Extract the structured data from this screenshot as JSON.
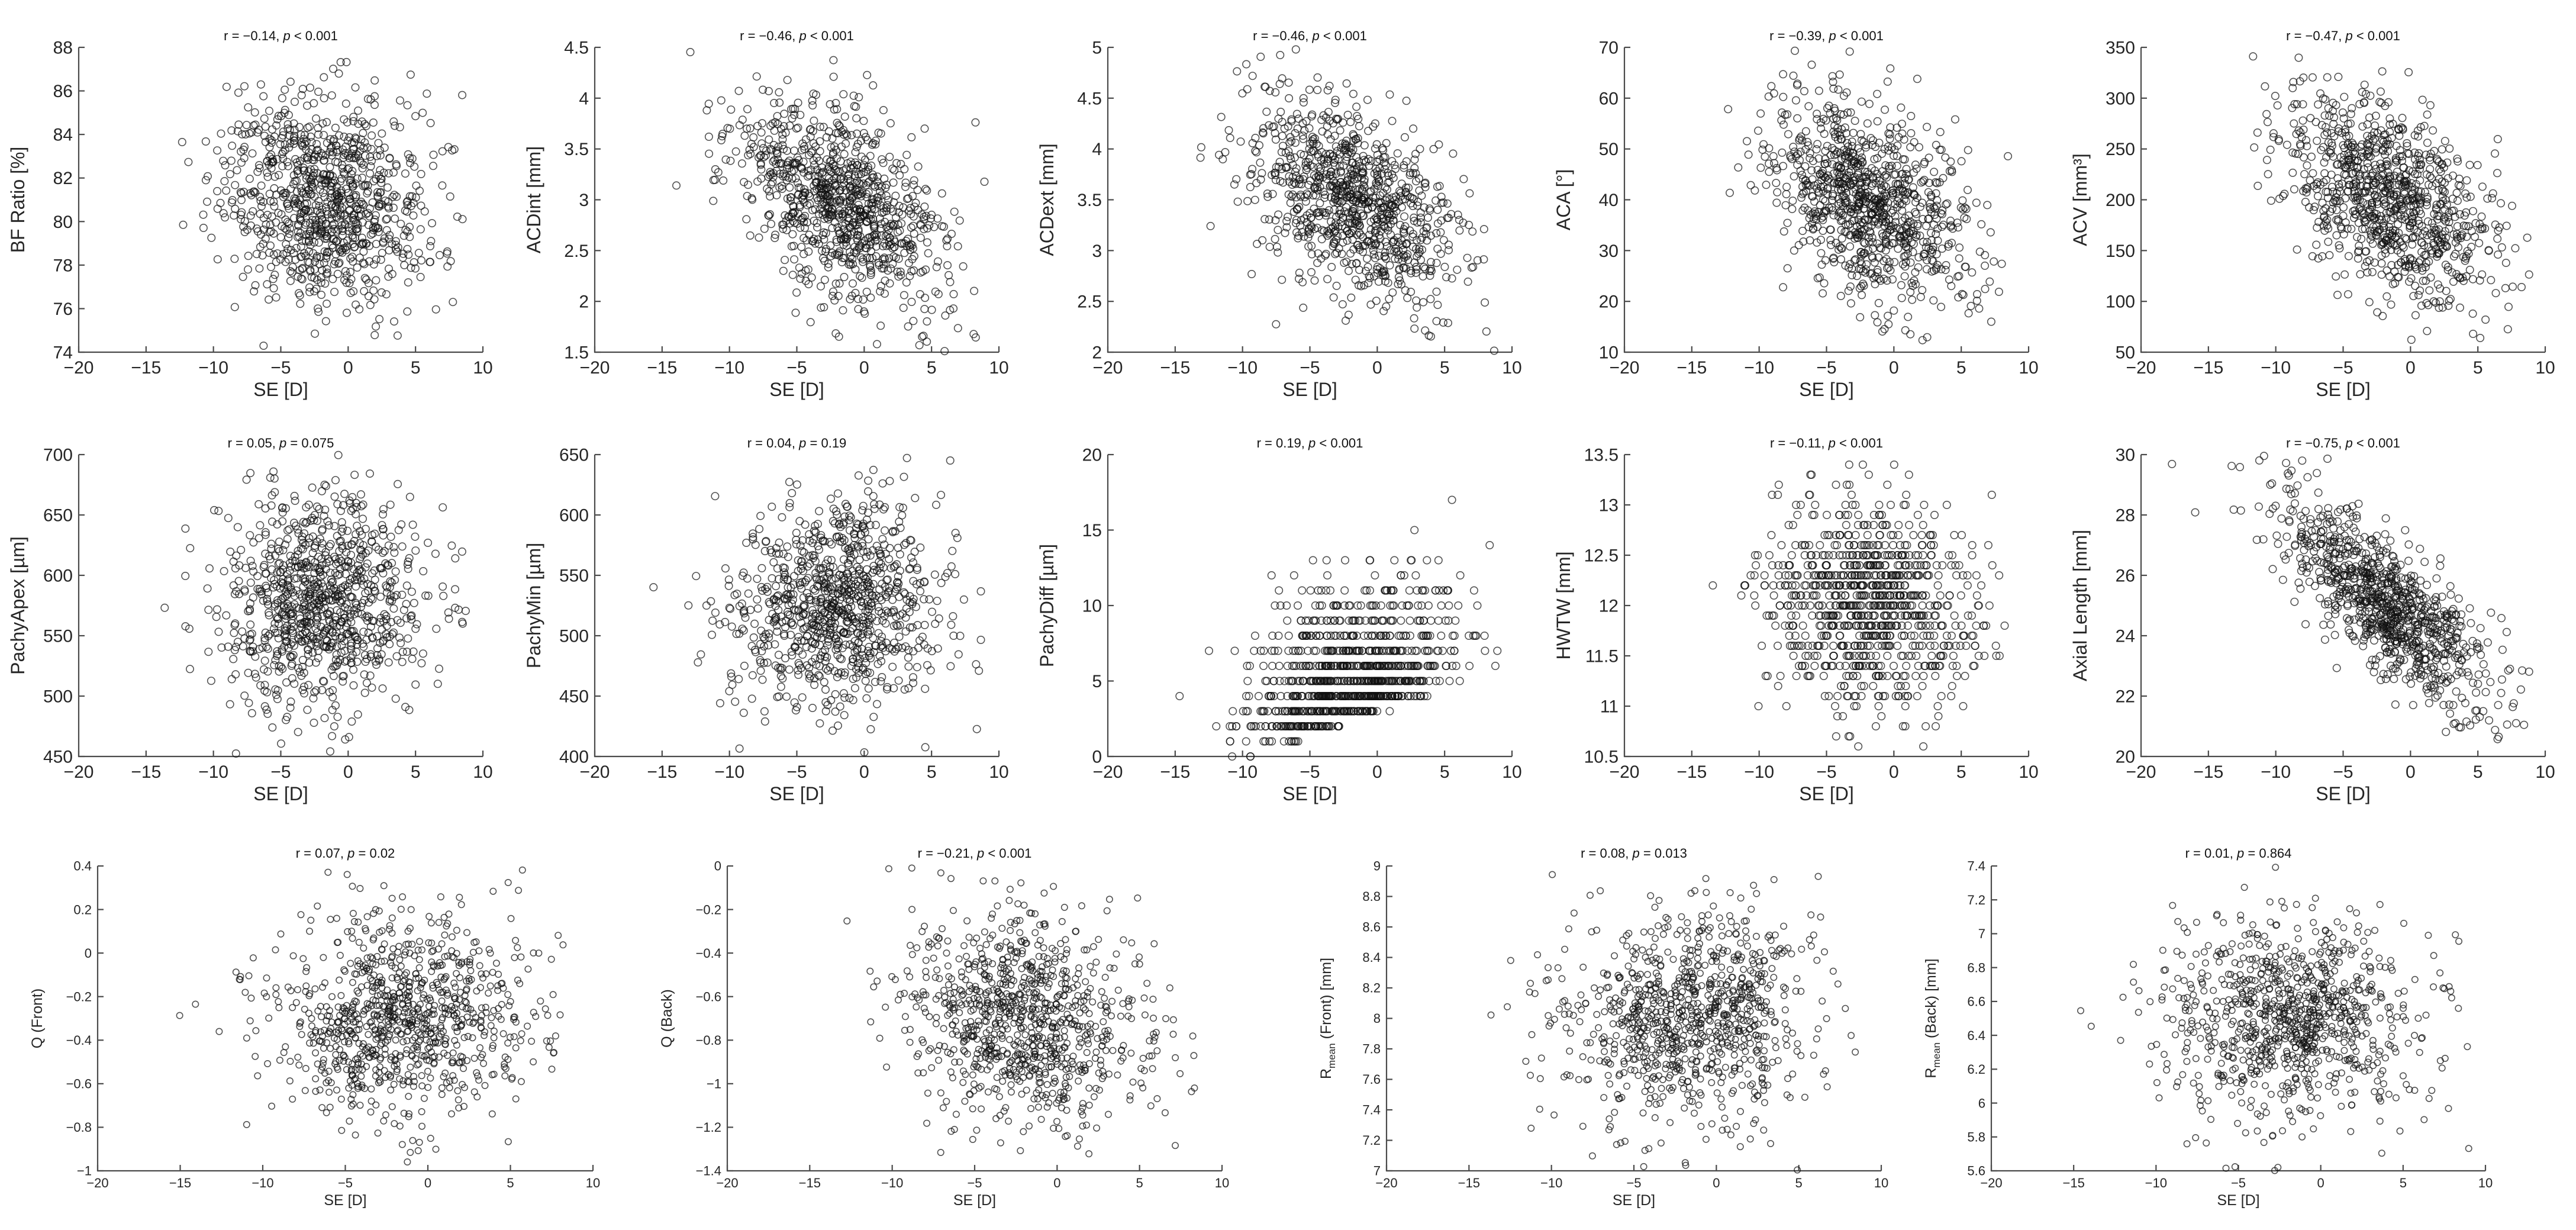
{
  "chart_data": [
    {
      "type": "scatter",
      "title": "r = −0.14, p < 0.001",
      "xlabel": "SE [D]",
      "ylabel": "BF Ratio [%]",
      "xlim": [
        -20,
        10
      ],
      "ylim": [
        74,
        88
      ],
      "xticks": [
        -20,
        -15,
        -10,
        -5,
        0,
        5,
        10
      ],
      "yticks": [
        74,
        76,
        78,
        80,
        82,
        84,
        86,
        88
      ],
      "n_points": 900,
      "r": -0.14,
      "p": "< 0.001"
    },
    {
      "type": "scatter",
      "title": "r = −0.46, p < 0.001",
      "xlabel": "SE [D]",
      "ylabel": "ACDint [mm]",
      "xlim": [
        -20,
        10
      ],
      "ylim": [
        1.5,
        4.5
      ],
      "xticks": [
        -20,
        -15,
        -10,
        -5,
        0,
        5,
        10
      ],
      "yticks": [
        1.5,
        2,
        2.5,
        3,
        3.5,
        4,
        4.5
      ],
      "n_points": 900,
      "r": -0.46,
      "p": "< 0.001"
    },
    {
      "type": "scatter",
      "title": "r = −0.46, p < 0.001",
      "xlabel": "SE [D]",
      "ylabel": "ACDext [mm]",
      "xlim": [
        -20,
        10
      ],
      "ylim": [
        2,
        5
      ],
      "xticks": [
        -20,
        -15,
        -10,
        -5,
        0,
        5,
        10
      ],
      "yticks": [
        2,
        2.5,
        3,
        3.5,
        4,
        4.5,
        5
      ],
      "n_points": 900,
      "r": -0.46,
      "p": "< 0.001"
    },
    {
      "type": "scatter",
      "title": "r = −0.39, p < 0.001",
      "xlabel": "SE [D]",
      "ylabel": "ACA [°]",
      "xlim": [
        -20,
        10
      ],
      "ylim": [
        10,
        70
      ],
      "xticks": [
        -20,
        -15,
        -10,
        -5,
        0,
        5,
        10
      ],
      "yticks": [
        10,
        20,
        30,
        40,
        50,
        60,
        70
      ],
      "n_points": 900,
      "r": -0.39,
      "p": "< 0.001"
    },
    {
      "type": "scatter",
      "title": "r = −0.47, p < 0.001",
      "xlabel": "SE [D]",
      "ylabel": "ACV [mm³]",
      "xlim": [
        -20,
        10
      ],
      "ylim": [
        50,
        350
      ],
      "xticks": [
        -20,
        -15,
        -10,
        -5,
        0,
        5,
        10
      ],
      "yticks": [
        50,
        100,
        150,
        200,
        250,
        300,
        350
      ],
      "n_points": 900,
      "r": -0.47,
      "p": "< 0.001"
    },
    {
      "type": "scatter",
      "title": "r = 0.05, p = 0.075",
      "xlabel": "SE [D]",
      "ylabel": "PachyApex [µm]",
      "xlim": [
        -20,
        10
      ],
      "ylim": [
        450,
        700
      ],
      "xticks": [
        -20,
        -15,
        -10,
        -5,
        0,
        5,
        10
      ],
      "yticks": [
        450,
        500,
        550,
        600,
        650,
        700
      ],
      "n_points": 900,
      "r": 0.05,
      "p": "0.075"
    },
    {
      "type": "scatter",
      "title": "r = 0.04, p = 0.19",
      "xlabel": "SE [D]",
      "ylabel": "PachyMin [µm]",
      "xlim": [
        -20,
        10
      ],
      "ylim": [
        400,
        650
      ],
      "xticks": [
        -20,
        -15,
        -10,
        -5,
        0,
        5,
        10
      ],
      "yticks": [
        400,
        450,
        500,
        550,
        600,
        650
      ],
      "n_points": 900,
      "r": 0.04,
      "p": "0.19"
    },
    {
      "type": "scatter",
      "title": "r = 0.19, p < 0.001",
      "xlabel": "SE [D]",
      "ylabel": "PachyDiff [µm]",
      "xlim": [
        -20,
        10
      ],
      "ylim": [
        0,
        20
      ],
      "xticks": [
        -20,
        -15,
        -10,
        -5,
        0,
        5,
        10
      ],
      "yticks": [
        0,
        5,
        10,
        15,
        20
      ],
      "n_points": 900,
      "r": 0.19,
      "p": "< 0.001",
      "y_discrete_step": 1
    },
    {
      "type": "scatter",
      "title": "r = −0.11, p < 0.001",
      "xlabel": "SE [D]",
      "ylabel": "HWTW [mm]",
      "xlim": [
        -20,
        10
      ],
      "ylim": [
        10.5,
        13.5
      ],
      "xticks": [
        -20,
        -15,
        -10,
        -5,
        0,
        5,
        10
      ],
      "yticks": [
        10.5,
        11,
        11.5,
        12,
        12.5,
        13,
        13.5
      ],
      "n_points": 900,
      "r": -0.11,
      "p": "< 0.001",
      "y_discrete_step": 0.1
    },
    {
      "type": "scatter",
      "title": "r = −0.75, p < 0.001",
      "xlabel": "SE [D]",
      "ylabel": "Axial Length [mm]",
      "xlim": [
        -20,
        10
      ],
      "ylim": [
        20,
        30
      ],
      "xticks": [
        -20,
        -15,
        -10,
        -5,
        0,
        5,
        10
      ],
      "yticks": [
        20,
        22,
        24,
        26,
        28,
        30
      ],
      "n_points": 900,
      "r": -0.75,
      "p": "< 0.001"
    },
    {
      "type": "scatter",
      "title": "r = 0.07, p = 0.02",
      "xlabel": "SE [D]",
      "ylabel": "Q (Front)",
      "xlim": [
        -20,
        10
      ],
      "ylim": [
        -1,
        0.4
      ],
      "xticks": [
        -20,
        -15,
        -10,
        -5,
        0,
        5,
        10
      ],
      "yticks": [
        -1,
        -0.8,
        -0.6,
        -0.4,
        -0.2,
        0,
        0.2,
        0.4
      ],
      "n_points": 900,
      "r": 0.07,
      "p": "0.02"
    },
    {
      "type": "scatter",
      "title": "r = −0.21, p < 0.001",
      "xlabel": "SE [D]",
      "ylabel": "Q (Back)",
      "xlim": [
        -20,
        10
      ],
      "ylim": [
        -1.4,
        0
      ],
      "xticks": [
        -20,
        -15,
        -10,
        -5,
        0,
        5,
        10
      ],
      "yticks": [
        -1.4,
        -1.2,
        -1,
        -0.8,
        -0.6,
        -0.4,
        -0.2,
        0
      ],
      "n_points": 900,
      "r": -0.21,
      "p": "< 0.001"
    },
    {
      "type": "scatter",
      "title": "r = 0.08, p = 0.013",
      "xlabel": "SE [D]",
      "ylabel": "Rmean (Front) [mm]",
      "xlim": [
        -20,
        10
      ],
      "ylim": [
        7,
        9
      ],
      "xticks": [
        -20,
        -15,
        -10,
        -5,
        0,
        5,
        10
      ],
      "yticks": [
        7,
        7.2,
        7.4,
        7.6,
        7.8,
        8,
        8.2,
        8.4,
        8.6,
        8.8,
        9
      ],
      "n_points": 900,
      "r": 0.08,
      "p": "0.013"
    },
    {
      "type": "scatter",
      "title": "r = 0.01, p = 0.864",
      "xlabel": "SE [D]",
      "ylabel": "Rmean (Back) [mm]",
      "xlim": [
        -20,
        10
      ],
      "ylim": [
        5.6,
        7.4
      ],
      "xticks": [
        -20,
        -15,
        -10,
        -5,
        0,
        5,
        10
      ],
      "yticks": [
        5.6,
        5.8,
        6,
        6.2,
        6.4,
        6.6,
        6.8,
        7,
        7.2,
        7.4
      ],
      "n_points": 900,
      "r": 0.01,
      "p": "0.864"
    }
  ]
}
